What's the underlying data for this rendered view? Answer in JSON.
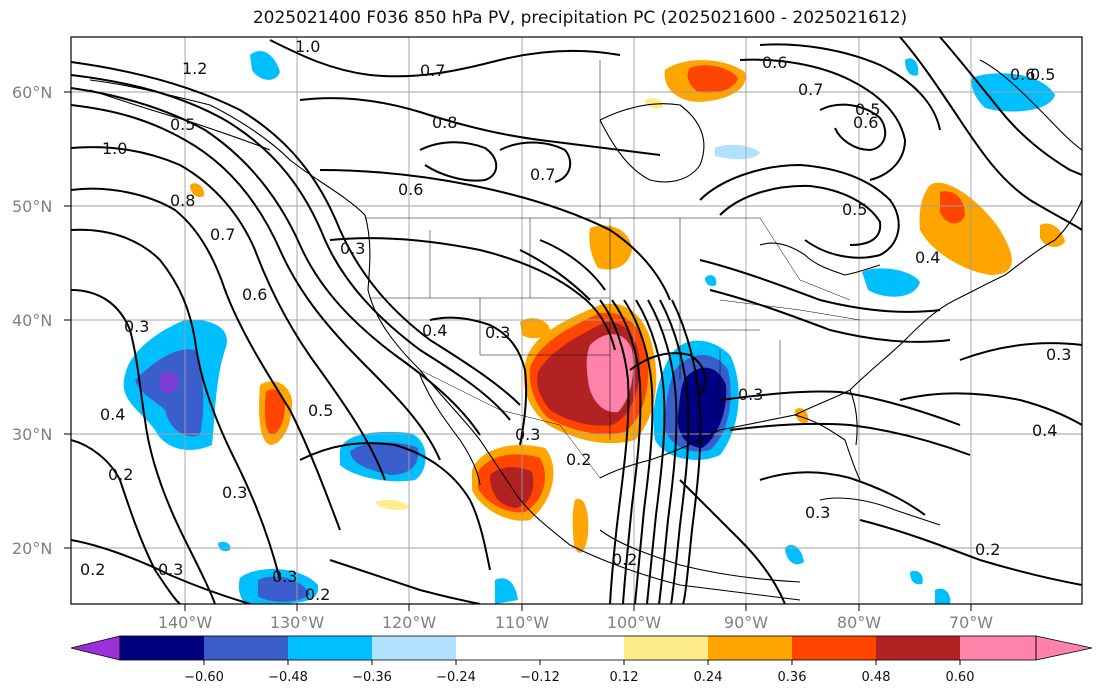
{
  "title": "2025021400 F036 850 hPa PV, precipitation PC (2025021600 - 2025021612)",
  "map": {
    "lon_range": [
      -150,
      -60
    ],
    "lat_range": [
      15,
      65
    ],
    "lat_labels": [
      "20°N",
      "30°N",
      "40°N",
      "50°N",
      "60°N"
    ],
    "lon_labels": [
      "140°W",
      "130°W",
      "120°W",
      "110°W",
      "100°W",
      "90°W",
      "80°W",
      "70°W"
    ],
    "gridlines": true
  },
  "contour_labels": [
    "1.0",
    "1.2",
    "0.5",
    "1.0",
    "0.8",
    "0.7",
    "0.8",
    "0.6",
    "0.6",
    "0.3",
    "0.3",
    "0.4",
    "0.3",
    "0.7",
    "0.7",
    "0.6",
    "0.5",
    "0.5",
    "0.6",
    "0.7",
    "0.5",
    "0.4",
    "0.3",
    "0.3",
    "0.4",
    "0.3",
    "0.2",
    "0.2",
    "0.3",
    "0.3",
    "0.2",
    "0.2",
    "0.5",
    "0.3",
    "0.2",
    "0.2",
    "0.3",
    "0.6",
    "0.4"
  ],
  "colorbar": {
    "ticks": [
      "−0.60",
      "−0.48",
      "−0.36",
      "−0.24",
      "−0.12",
      "0.12",
      "0.24",
      "0.36",
      "0.48",
      "0.60"
    ],
    "colors": [
      "#9b30d9",
      "#000080",
      "#3a5fcd",
      "#00bfff",
      "#b0e2ff",
      "#ffffff",
      "#ffec8b",
      "#ffa500",
      "#ff4500",
      "#b22222",
      "#ff82ab",
      "#ff82ab"
    ]
  },
  "anomaly_colors": {
    "neg_strong": "#000080",
    "neg_mid": "#3a5fcd",
    "neg_light": "#00bfff",
    "pos_light": "#ffec8b",
    "pos_mid": "#ffa500",
    "pos_strong": "#ff4500",
    "pos_dark": "#b22222",
    "pos_max": "#ff82ab"
  }
}
